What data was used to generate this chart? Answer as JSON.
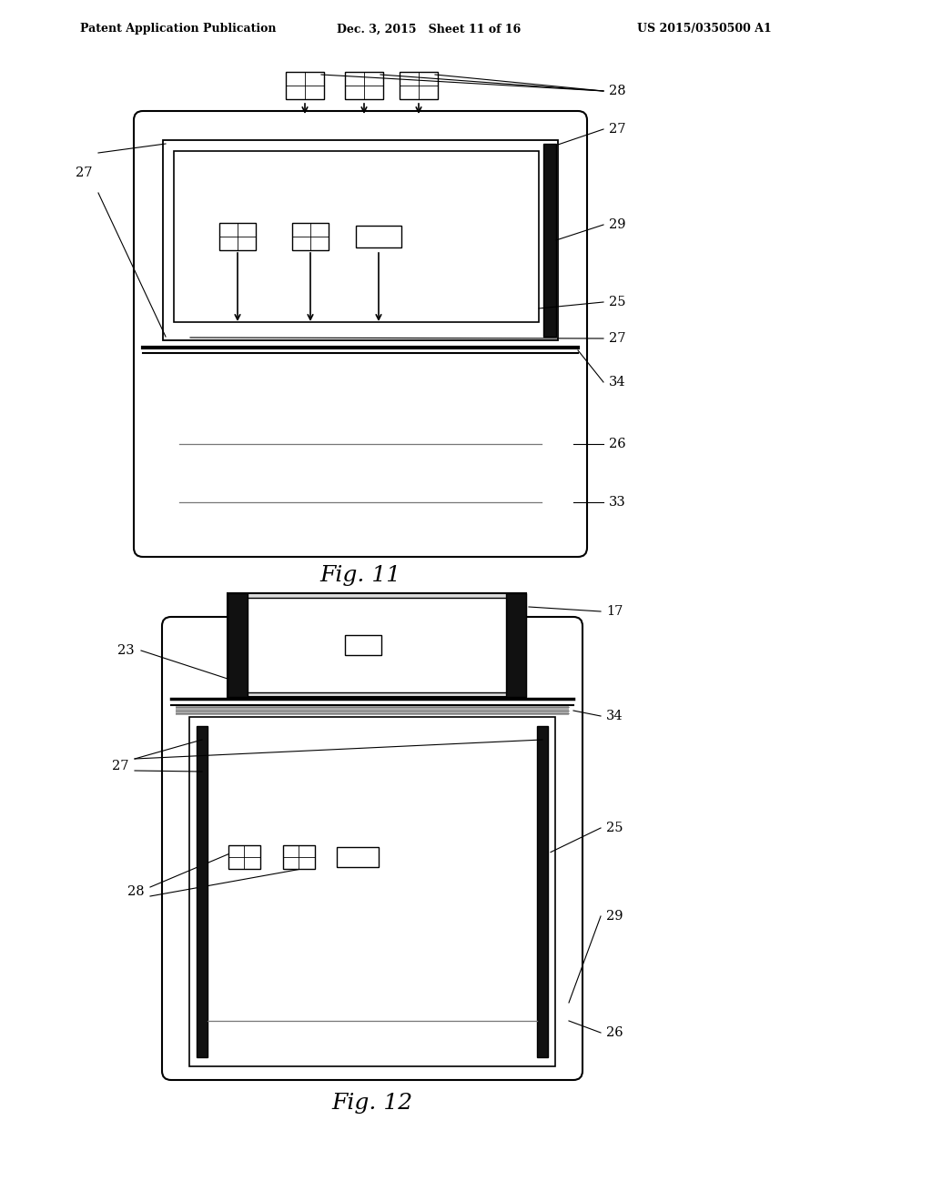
{
  "bg_color": "#ffffff",
  "header_left": "Patent Application Publication",
  "header_mid": "Dec. 3, 2015   Sheet 11 of 16",
  "header_right": "US 2015/0350500 A1",
  "fig11_label": "Fig. 11",
  "fig12_label": "Fig. 12",
  "lc": "#000000",
  "dark_fill": "#111111",
  "gray_fill": "#aaaaaa",
  "light_gray": "#dddddd"
}
